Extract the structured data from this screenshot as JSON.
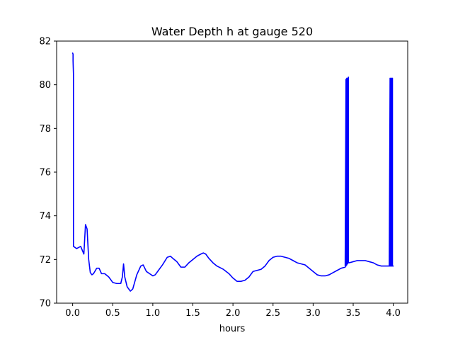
{
  "chart_data": {
    "type": "line",
    "title": "Water Depth h at gauge 520",
    "xlabel": "hours",
    "ylabel": "",
    "xlim": [
      -0.2,
      4.18
    ],
    "ylim": [
      70,
      82
    ],
    "xticks": [
      0.0,
      0.5,
      1.0,
      1.5,
      2.0,
      2.5,
      3.0,
      3.5,
      4.0
    ],
    "xtick_labels": [
      "0.0",
      "0.5",
      "1.0",
      "1.5",
      "2.0",
      "2.5",
      "3.0",
      "3.5",
      "4.0"
    ],
    "yticks": [
      70,
      72,
      74,
      76,
      78,
      80,
      82
    ],
    "ytick_labels": [
      "70",
      "72",
      "74",
      "76",
      "78",
      "80",
      "82"
    ],
    "grid": false,
    "legend": "none",
    "series": [
      {
        "color": "#0000ff",
        "x": [
          0.0,
          0.005,
          0.005,
          0.01,
          0.01,
          0.05,
          0.1,
          0.14,
          0.16,
          0.18,
          0.2,
          0.22,
          0.24,
          0.26,
          0.3,
          0.33,
          0.36,
          0.4,
          0.45,
          0.5,
          0.55,
          0.6,
          0.62,
          0.635,
          0.65,
          0.68,
          0.72,
          0.75,
          0.8,
          0.85,
          0.88,
          0.92,
          0.96,
          1.0,
          1.03,
          1.07,
          1.12,
          1.18,
          1.22,
          1.25,
          1.3,
          1.35,
          1.4,
          1.45,
          1.5,
          1.55,
          1.6,
          1.63,
          1.66,
          1.7,
          1.75,
          1.8,
          1.88,
          1.95,
          2.0,
          2.05,
          2.1,
          2.15,
          2.2,
          2.25,
          2.3,
          2.35,
          2.4,
          2.45,
          2.5,
          2.55,
          2.6,
          2.65,
          2.7,
          2.75,
          2.8,
          2.9,
          2.95,
          3.0,
          3.05,
          3.1,
          3.15,
          3.2,
          3.25,
          3.3,
          3.35,
          3.4,
          3.41,
          3.41,
          3.42,
          3.42,
          3.43,
          3.43,
          3.44,
          3.44,
          3.45,
          3.5,
          3.55,
          3.6,
          3.65,
          3.7,
          3.75,
          3.8,
          3.85,
          3.9,
          3.95,
          3.96,
          3.96,
          3.97,
          3.97,
          3.98,
          3.98,
          3.99,
          3.99,
          4.0
        ],
        "y": [
          81.45,
          81.4,
          81.1,
          80.5,
          72.6,
          72.5,
          72.6,
          72.25,
          73.6,
          73.4,
          72.0,
          71.4,
          71.3,
          71.35,
          71.6,
          71.6,
          71.35,
          71.35,
          71.2,
          70.95,
          70.9,
          70.9,
          71.2,
          71.8,
          71.2,
          70.75,
          70.55,
          70.65,
          71.3,
          71.7,
          71.75,
          71.45,
          71.35,
          71.25,
          71.3,
          71.5,
          71.75,
          72.1,
          72.15,
          72.05,
          71.9,
          71.65,
          71.65,
          71.85,
          72.0,
          72.15,
          72.25,
          72.3,
          72.25,
          72.05,
          71.85,
          71.7,
          71.55,
          71.35,
          71.15,
          71.0,
          71.0,
          71.05,
          71.2,
          71.45,
          71.5,
          71.55,
          71.7,
          71.95,
          72.1,
          72.15,
          72.15,
          72.1,
          72.05,
          71.95,
          71.85,
          71.75,
          71.6,
          71.45,
          71.3,
          71.25,
          71.25,
          71.3,
          71.4,
          71.5,
          71.6,
          71.65,
          80.25,
          71.7,
          80.3,
          71.75,
          80.3,
          71.8,
          80.35,
          71.85,
          71.85,
          71.9,
          71.95,
          71.95,
          71.95,
          71.9,
          71.85,
          71.75,
          71.7,
          71.7,
          71.7,
          80.3,
          71.7,
          80.3,
          71.7,
          80.3,
          71.7,
          80.3,
          71.7,
          71.7
        ]
      }
    ]
  }
}
